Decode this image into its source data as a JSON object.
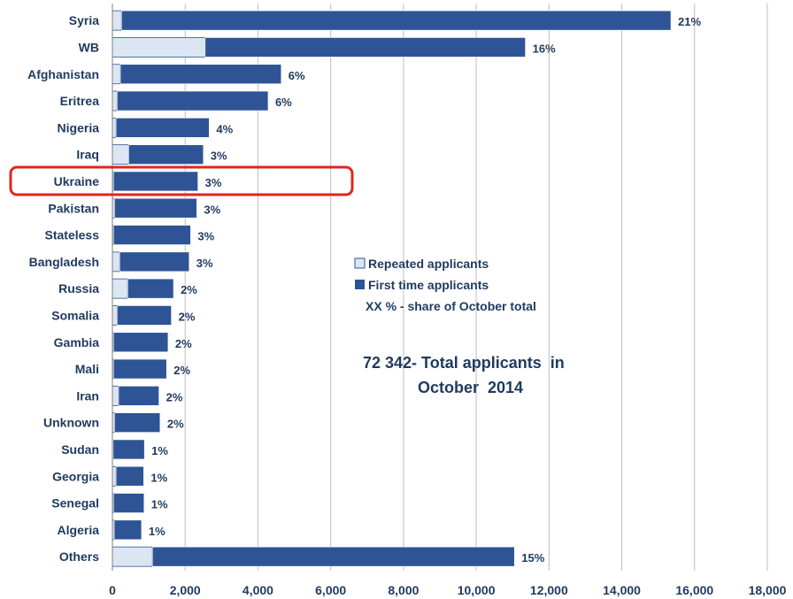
{
  "chart_data": {
    "type": "bar",
    "orientation": "horizontal",
    "stacked": true,
    "categories": [
      "Syria",
      "WB",
      "Afghanistan",
      "Eritrea",
      "Nigeria",
      "Iraq",
      "Ukraine",
      "Pakistan",
      "Stateless",
      "Bangladesh",
      "Russia",
      "Somalia",
      "Gambia",
      "Mali",
      "Iran",
      "Unknown",
      "Sudan",
      "Georgia",
      "Senegal",
      "Algeria",
      "Others"
    ],
    "series": [
      {
        "name": "Repeated applicants",
        "color": "#dce6f2",
        "values": [
          250,
          2550,
          220,
          130,
          100,
          450,
          30,
          60,
          30,
          200,
          420,
          130,
          30,
          30,
          170,
          60,
          20,
          100,
          30,
          50,
          1100
        ]
      },
      {
        "name": "First time applicants",
        "color": "#2f5496",
        "values": [
          15100,
          8800,
          4420,
          4150,
          2560,
          2050,
          2320,
          2260,
          2120,
          1910,
          1260,
          1490,
          1500,
          1460,
          1110,
          1250,
          860,
          760,
          840,
          750,
          9950
        ]
      }
    ],
    "share_labels": [
      "21%",
      "16%",
      "6%",
      "6%",
      "4%",
      "3%",
      "3%",
      "3%",
      "3%",
      "3%",
      "2%",
      "2%",
      "2%",
      "2%",
      "2%",
      "2%",
      "1%",
      "1%",
      "1%",
      "1%",
      "15%"
    ],
    "x_ticks": [
      "0",
      "2,000",
      "4,000",
      "6,000",
      "8,000",
      "10,000",
      "12,000",
      "14,000",
      "16,000",
      "18,000"
    ],
    "xlim": [
      0,
      18000
    ],
    "grid": "vertical",
    "legend": {
      "placement": "center-right",
      "items": [
        "Repeated applicants",
        "First time applicants"
      ],
      "note": "XX % - share of October total"
    },
    "annotation_lines": [
      "72 342- Total applicants  in",
      "October  2014"
    ],
    "highlight": {
      "category": "Ukraine",
      "color": "#e0261b"
    }
  }
}
